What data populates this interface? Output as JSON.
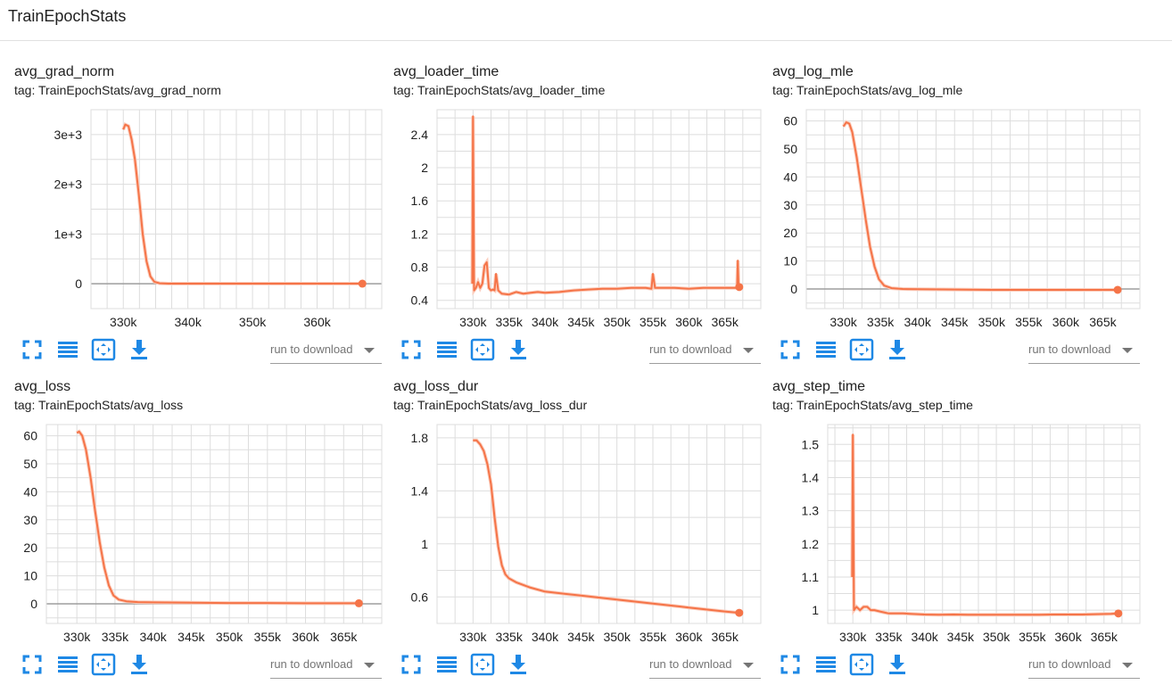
{
  "section": {
    "title": "TrainEpochStats"
  },
  "toolbar": {
    "icons": [
      "fullscreen-icon",
      "toggle-log-scale-icon",
      "fit-domain-icon",
      "download-icon"
    ],
    "run_select_placeholder": "run to download",
    "accent_color": "#1e88e5"
  },
  "colors": {
    "series": "#f57448",
    "series_raw": "#fbcdbd",
    "grid": "#dddddd",
    "zero_line": "#9e9e9e"
  },
  "chart_data": [
    {
      "type": "line",
      "title": "avg_grad_norm",
      "tag": "tag: TrainEpochStats/avg_grad_norm",
      "xlim": [
        325000,
        370000
      ],
      "ylim": [
        -500,
        3500
      ],
      "xticks": [
        330000,
        340000,
        350000,
        360000
      ],
      "xtick_labels": [
        "330k",
        "340k",
        "350k",
        "360k"
      ],
      "yticks": [
        0,
        1000,
        2000,
        3000
      ],
      "ytick_labels": [
        "0",
        "1e+3",
        "2e+3",
        "3e+3"
      ],
      "x_minor_step": 2500,
      "series": [
        {
          "x": [
            330000,
            330300,
            330800,
            331300,
            331800,
            332400,
            333000,
            333600,
            334200,
            334800,
            335600,
            337000,
            340000,
            345000,
            350000,
            355000,
            360000,
            365000,
            367000
          ],
          "y": [
            3100,
            3200,
            3170,
            2900,
            2500,
            1800,
            1000,
            450,
            150,
            40,
            10,
            3,
            2,
            2,
            2,
            2,
            2,
            2,
            2
          ]
        }
      ]
    },
    {
      "type": "line",
      "title": "avg_loader_time",
      "tag": "tag: TrainEpochStats/avg_loader_time",
      "xlim": [
        325000,
        370000
      ],
      "ylim": [
        0.3,
        2.7
      ],
      "xticks": [
        330000,
        335000,
        340000,
        345000,
        350000,
        355000,
        360000,
        365000
      ],
      "xtick_labels": [
        "330k",
        "335k",
        "340k",
        "345k",
        "350k",
        "355k",
        "360k",
        "365k"
      ],
      "yticks": [
        0.4,
        0.8,
        1.2,
        1.6,
        2,
        2.4
      ],
      "ytick_labels": [
        "0.4",
        "0.8",
        "1.2",
        "1.6",
        "2",
        "2.4"
      ],
      "x_minor_step": 2500,
      "series": [
        {
          "x": [
            329900,
            330000,
            330150,
            330400,
            330700,
            331000,
            331300,
            331600,
            331900,
            332200,
            332500,
            332800,
            333000,
            333200,
            333500,
            334000,
            335000,
            336000,
            337000,
            338000,
            339000,
            340000,
            342000,
            344000,
            346000,
            348000,
            350000,
            352000,
            354000,
            354800,
            355000,
            355300,
            356000,
            358000,
            360000,
            362000,
            364000,
            366000,
            366700,
            366800,
            366900,
            367000
          ],
          "y": [
            0.6,
            2.62,
            0.52,
            0.55,
            0.62,
            0.55,
            0.6,
            0.82,
            0.86,
            0.55,
            0.52,
            0.53,
            0.52,
            0.72,
            0.52,
            0.48,
            0.47,
            0.5,
            0.48,
            0.49,
            0.5,
            0.49,
            0.5,
            0.52,
            0.53,
            0.54,
            0.54,
            0.55,
            0.55,
            0.54,
            0.72,
            0.55,
            0.55,
            0.55,
            0.54,
            0.55,
            0.55,
            0.55,
            0.55,
            0.88,
            0.6,
            0.56
          ]
        }
      ]
    },
    {
      "type": "line",
      "title": "avg_log_mle",
      "tag": "tag: TrainEpochStats/avg_log_mle",
      "xlim": [
        325000,
        370000
      ],
      "ylim": [
        -7,
        64
      ],
      "xticks": [
        330000,
        335000,
        340000,
        345000,
        350000,
        355000,
        360000,
        365000
      ],
      "xtick_labels": [
        "330k",
        "335k",
        "340k",
        "345k",
        "350k",
        "355k",
        "360k",
        "365k"
      ],
      "yticks": [
        0,
        10,
        20,
        30,
        40,
        50,
        60
      ],
      "ytick_labels": [
        "0",
        "10",
        "20",
        "30",
        "40",
        "50",
        "60"
      ],
      "x_minor_step": 2500,
      "series": [
        {
          "x": [
            330000,
            330400,
            330800,
            331200,
            331800,
            332400,
            333000,
            333600,
            334200,
            334800,
            335500,
            336500,
            338000,
            340000,
            345000,
            350000,
            355000,
            360000,
            365000,
            367000
          ],
          "y": [
            58,
            59.5,
            59,
            56,
            47,
            36,
            25,
            15,
            8,
            3.5,
            1.2,
            0.3,
            0,
            -0.1,
            -0.2,
            -0.3,
            -0.3,
            -0.3,
            -0.3,
            -0.3
          ]
        }
      ]
    },
    {
      "type": "line",
      "title": "avg_loss",
      "tag": "tag: TrainEpochStats/avg_loss",
      "xlim": [
        326000,
        370000
      ],
      "ylim": [
        -7,
        64
      ],
      "xticks": [
        330000,
        335000,
        340000,
        345000,
        350000,
        355000,
        360000,
        365000
      ],
      "xtick_labels": [
        "330k",
        "335k",
        "340k",
        "345k",
        "350k",
        "355k",
        "360k",
        "365k"
      ],
      "yticks": [
        0,
        10,
        20,
        30,
        40,
        50,
        60
      ],
      "ytick_labels": [
        "0",
        "10",
        "20",
        "30",
        "40",
        "50",
        "60"
      ],
      "x_minor_step": 2500,
      "series": [
        {
          "x": [
            330000,
            330300,
            330700,
            331200,
            331800,
            332400,
            333000,
            333600,
            334200,
            334800,
            335500,
            336500,
            338000,
            340000,
            345000,
            350000,
            355000,
            360000,
            365000,
            367000
          ],
          "y": [
            61,
            61.5,
            60,
            55,
            45,
            33,
            22,
            13,
            6.5,
            3,
            1.5,
            0.9,
            0.6,
            0.5,
            0.4,
            0.3,
            0.3,
            0.2,
            0.2,
            0.2
          ]
        }
      ]
    },
    {
      "type": "line",
      "title": "avg_loss_dur",
      "tag": "tag: TrainEpochStats/avg_loss_dur",
      "xlim": [
        325000,
        370000
      ],
      "ylim": [
        0.4,
        1.9
      ],
      "xticks": [
        330000,
        335000,
        340000,
        345000,
        350000,
        355000,
        360000,
        365000
      ],
      "xtick_labels": [
        "330k",
        "335k",
        "340k",
        "345k",
        "350k",
        "355k",
        "360k",
        "365k"
      ],
      "yticks": [
        0.6,
        1,
        1.4,
        1.8
      ],
      "ytick_labels": [
        "0.6",
        "1",
        "1.4",
        "1.8"
      ],
      "x_minor_step": 2500,
      "series": [
        {
          "x": [
            330000,
            330500,
            331000,
            331500,
            332000,
            332500,
            333000,
            333500,
            334000,
            334500,
            335000,
            336000,
            338000,
            340000,
            345000,
            350000,
            355000,
            360000,
            365000,
            367000
          ],
          "y": [
            1.78,
            1.78,
            1.75,
            1.7,
            1.6,
            1.45,
            1.2,
            0.98,
            0.84,
            0.77,
            0.74,
            0.71,
            0.67,
            0.64,
            0.61,
            0.58,
            0.55,
            0.52,
            0.49,
            0.48
          ]
        }
      ]
    },
    {
      "type": "line",
      "title": "avg_step_time",
      "tag": "tag: TrainEpochStats/avg_step_time",
      "xlim": [
        326500,
        370000
      ],
      "ylim": [
        0.96,
        1.56
      ],
      "xticks": [
        330000,
        335000,
        340000,
        345000,
        350000,
        355000,
        360000,
        365000
      ],
      "xtick_labels": [
        "330k",
        "335k",
        "340k",
        "345k",
        "350k",
        "355k",
        "360k",
        "365k"
      ],
      "yticks": [
        1,
        1.1,
        1.2,
        1.3,
        1.4,
        1.5
      ],
      "ytick_labels": [
        "1",
        "1.1",
        "1.2",
        "1.3",
        "1.4",
        "1.5"
      ],
      "x_minor_step": 2500,
      "series": [
        {
          "x": [
            329900,
            330000,
            330150,
            330500,
            331000,
            331500,
            332000,
            332500,
            333000,
            334000,
            335000,
            336000,
            337000,
            338000,
            340000,
            342000,
            344000,
            346000,
            348000,
            350000,
            352000,
            354000,
            356000,
            358000,
            360000,
            362000,
            364000,
            366000,
            367000
          ],
          "y": [
            1.1,
            1.53,
            1.0,
            1.01,
            1.0,
            1.01,
            1.01,
            1.0,
            1.0,
            0.995,
            0.99,
            0.99,
            0.99,
            0.989,
            0.987,
            0.986,
            0.987,
            0.986,
            0.986,
            0.986,
            0.986,
            0.986,
            0.986,
            0.987,
            0.987,
            0.987,
            0.988,
            0.989,
            0.99
          ]
        }
      ]
    }
  ]
}
